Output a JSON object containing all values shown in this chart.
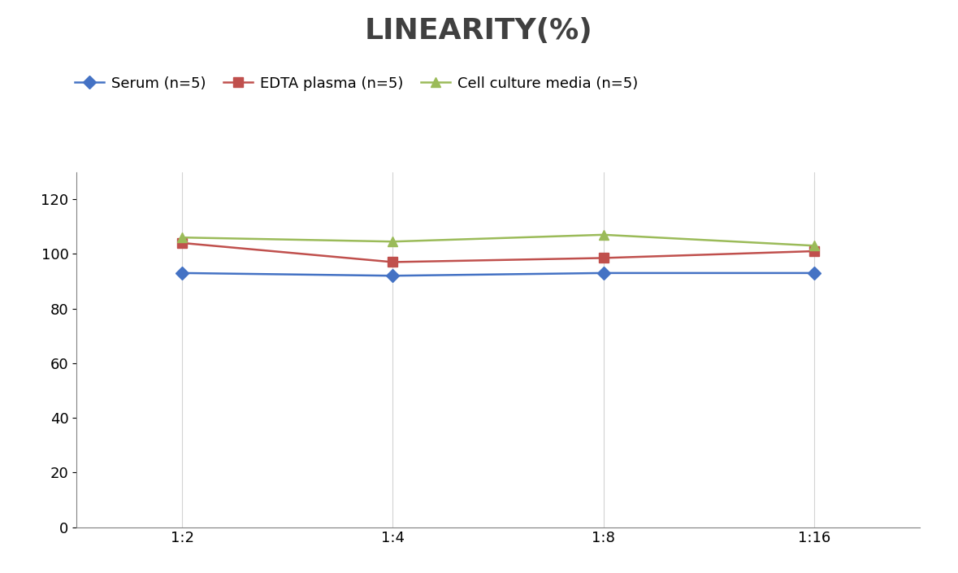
{
  "title": "LINEARITY(%)",
  "title_fontsize": 26,
  "title_fontweight": "bold",
  "title_color": "#404040",
  "x_labels": [
    "1:2",
    "1:4",
    "1:8",
    "1:16"
  ],
  "x_positions": [
    0,
    1,
    2,
    3
  ],
  "serum": {
    "label": "Serum (n=5)",
    "values": [
      93,
      92,
      93,
      93
    ],
    "color": "#4472C4",
    "marker": "D",
    "markersize": 8
  },
  "edta": {
    "label": "EDTA plasma (n=5)",
    "values": [
      104,
      97,
      98.5,
      101
    ],
    "color": "#C0504D",
    "marker": "s",
    "markersize": 8
  },
  "cell": {
    "label": "Cell culture media (n=5)",
    "values": [
      106,
      104.5,
      107,
      103
    ],
    "color": "#9BBB59",
    "marker": "^",
    "markersize": 9
  },
  "ylim": [
    0,
    130
  ],
  "yticks": [
    0,
    20,
    40,
    60,
    80,
    100,
    120
  ],
  "grid_color": "#D3D3D3",
  "background_color": "#FFFFFF",
  "legend_fontsize": 13,
  "tick_fontsize": 13,
  "linewidth": 1.8
}
